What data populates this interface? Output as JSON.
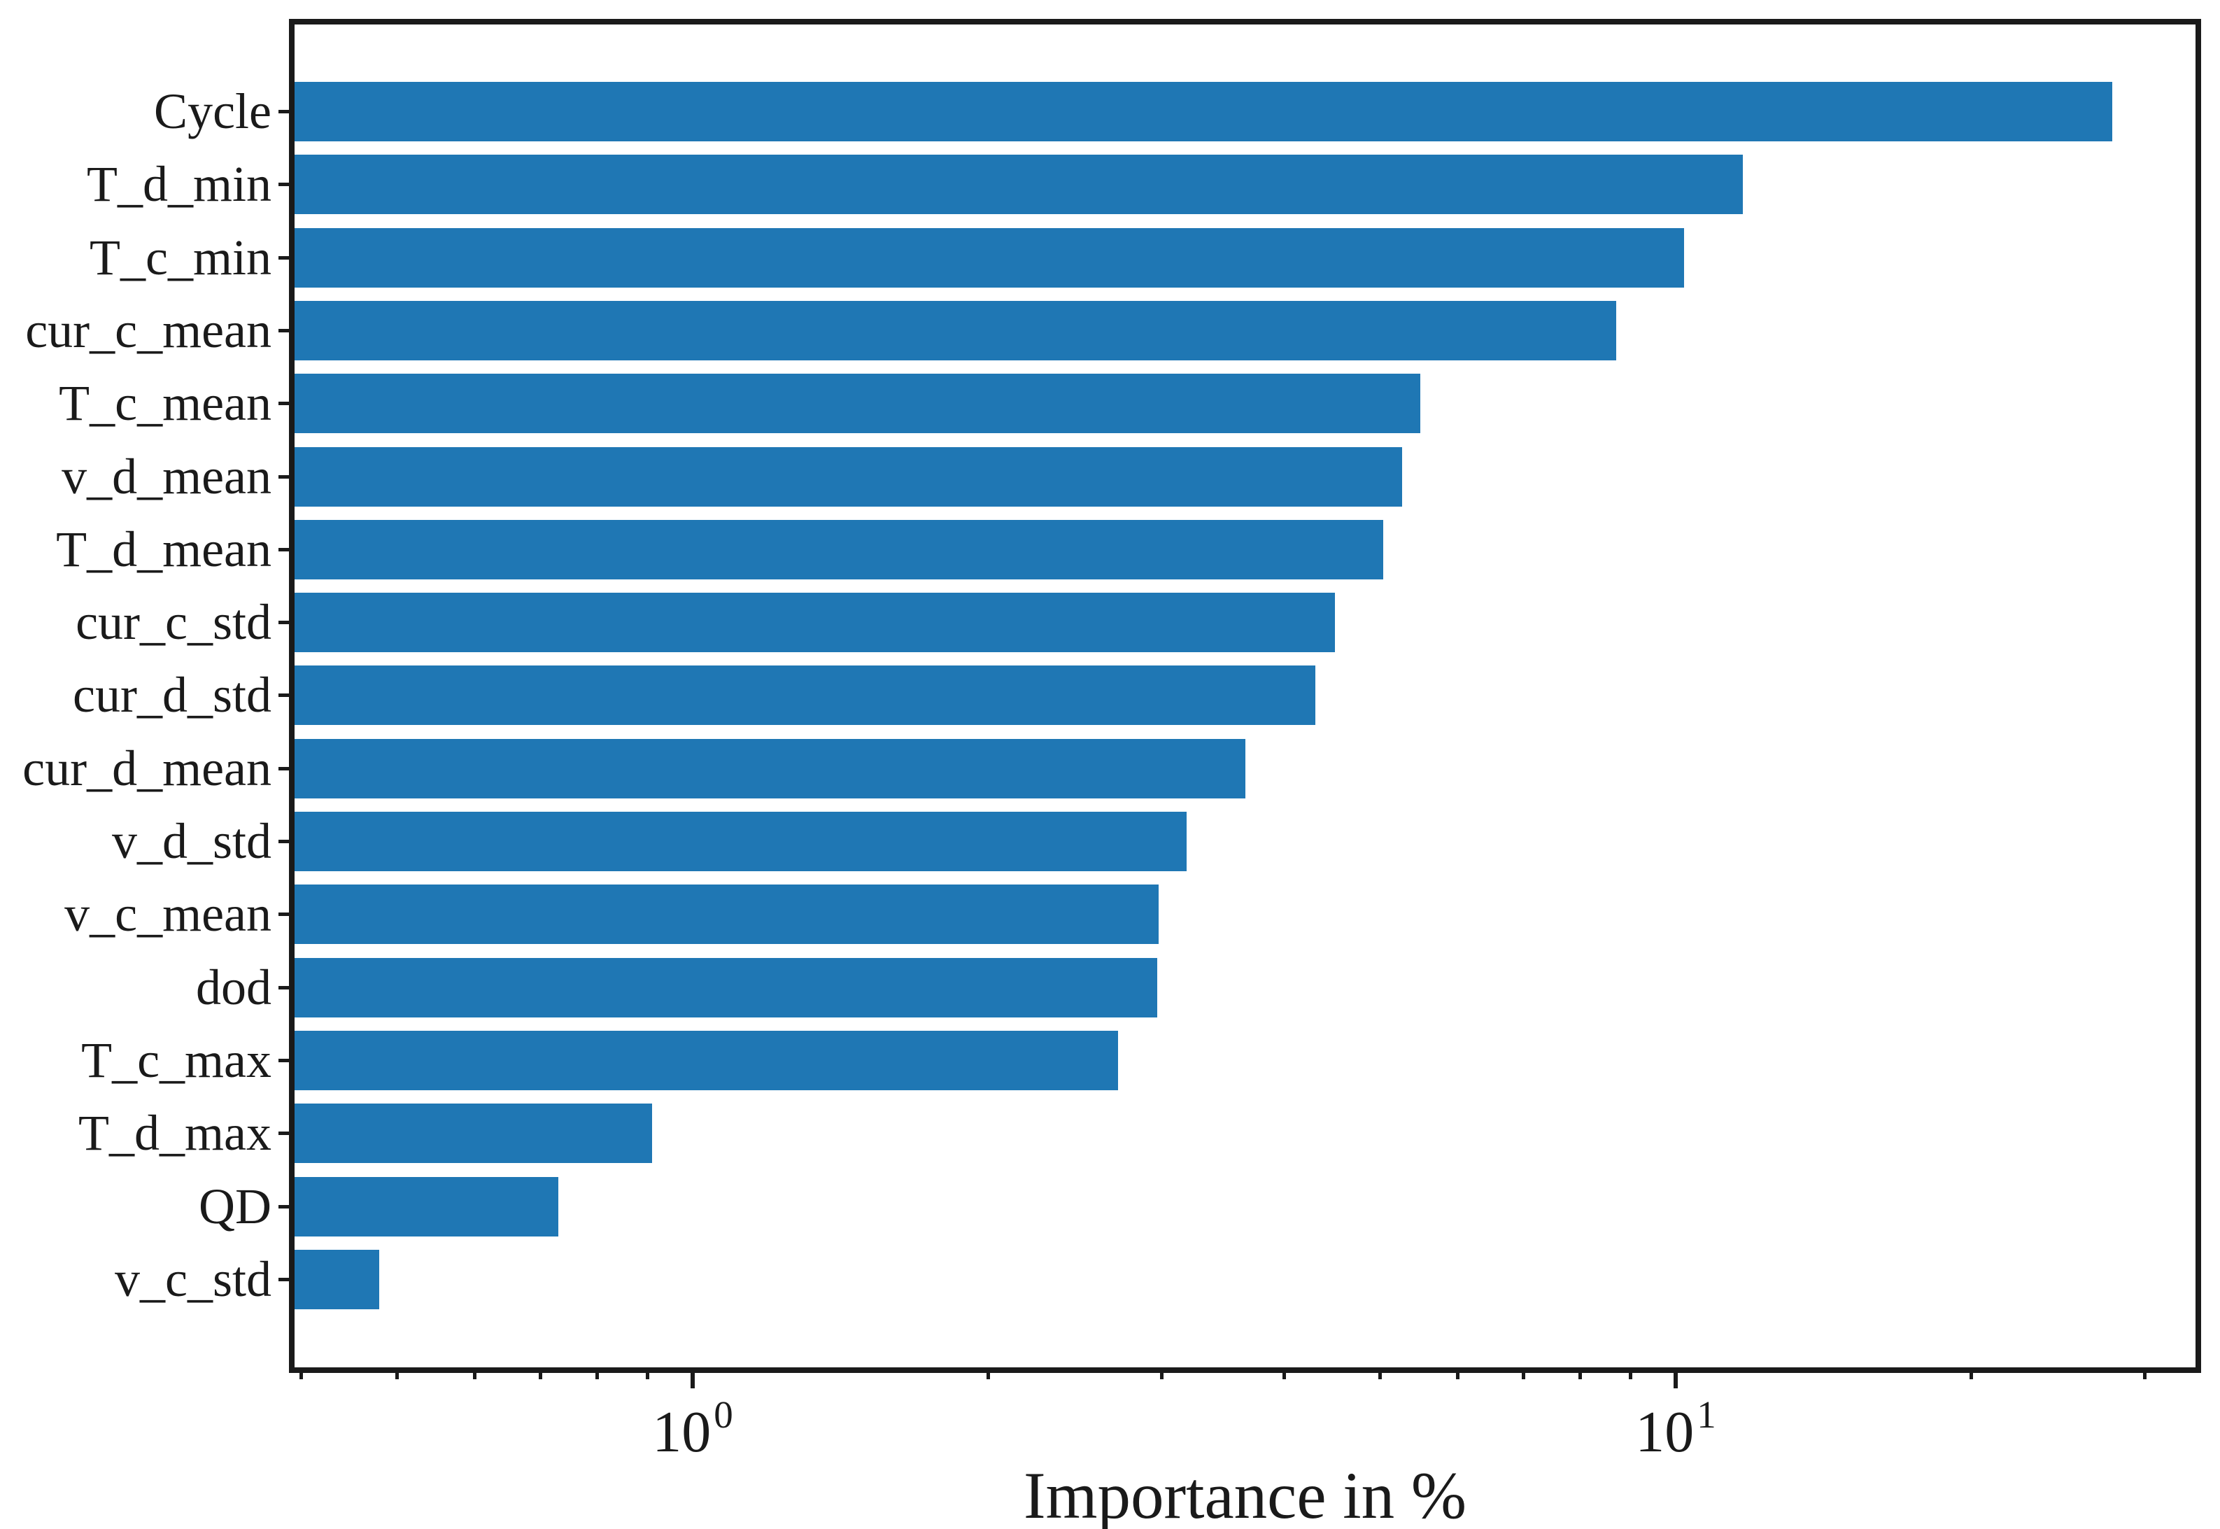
{
  "chart_data": {
    "type": "bar",
    "orientation": "horizontal",
    "title": "",
    "xlabel": "Importance in %",
    "ylabel": "",
    "xscale": "log",
    "xlim": [
      0.39,
      34
    ],
    "grid": false,
    "legend_position": "none",
    "categories": [
      "Cycle",
      "T_d_min",
      "T_c_min",
      "cur_c_mean",
      "T_c_mean",
      "v_d_mean",
      "T_d_mean",
      "cur_c_std",
      "cur_d_std",
      "cur_d_mean",
      "v_d_std",
      "v_c_mean",
      "dod",
      "T_c_max",
      "T_d_max",
      "QD",
      "v_c_std"
    ],
    "values": [
      27.8,
      11.7,
      10.2,
      8.7,
      5.5,
      5.27,
      5.04,
      4.5,
      4.3,
      3.65,
      3.18,
      2.98,
      2.97,
      2.71,
      0.91,
      0.73,
      0.48
    ],
    "x_major_ticks": [
      {
        "value": 1,
        "base": "10",
        "exponent": "0"
      },
      {
        "value": 10,
        "base": "10",
        "exponent": "1"
      }
    ],
    "x_minor_ticks": [
      0.4,
      0.5,
      0.6,
      0.7,
      0.8,
      0.9,
      2,
      3,
      4,
      5,
      6,
      7,
      8,
      9,
      20,
      30
    ],
    "bar_color": "#1f77b4",
    "axis_color": "#1a1a1a",
    "background_color": "#ffffff"
  }
}
